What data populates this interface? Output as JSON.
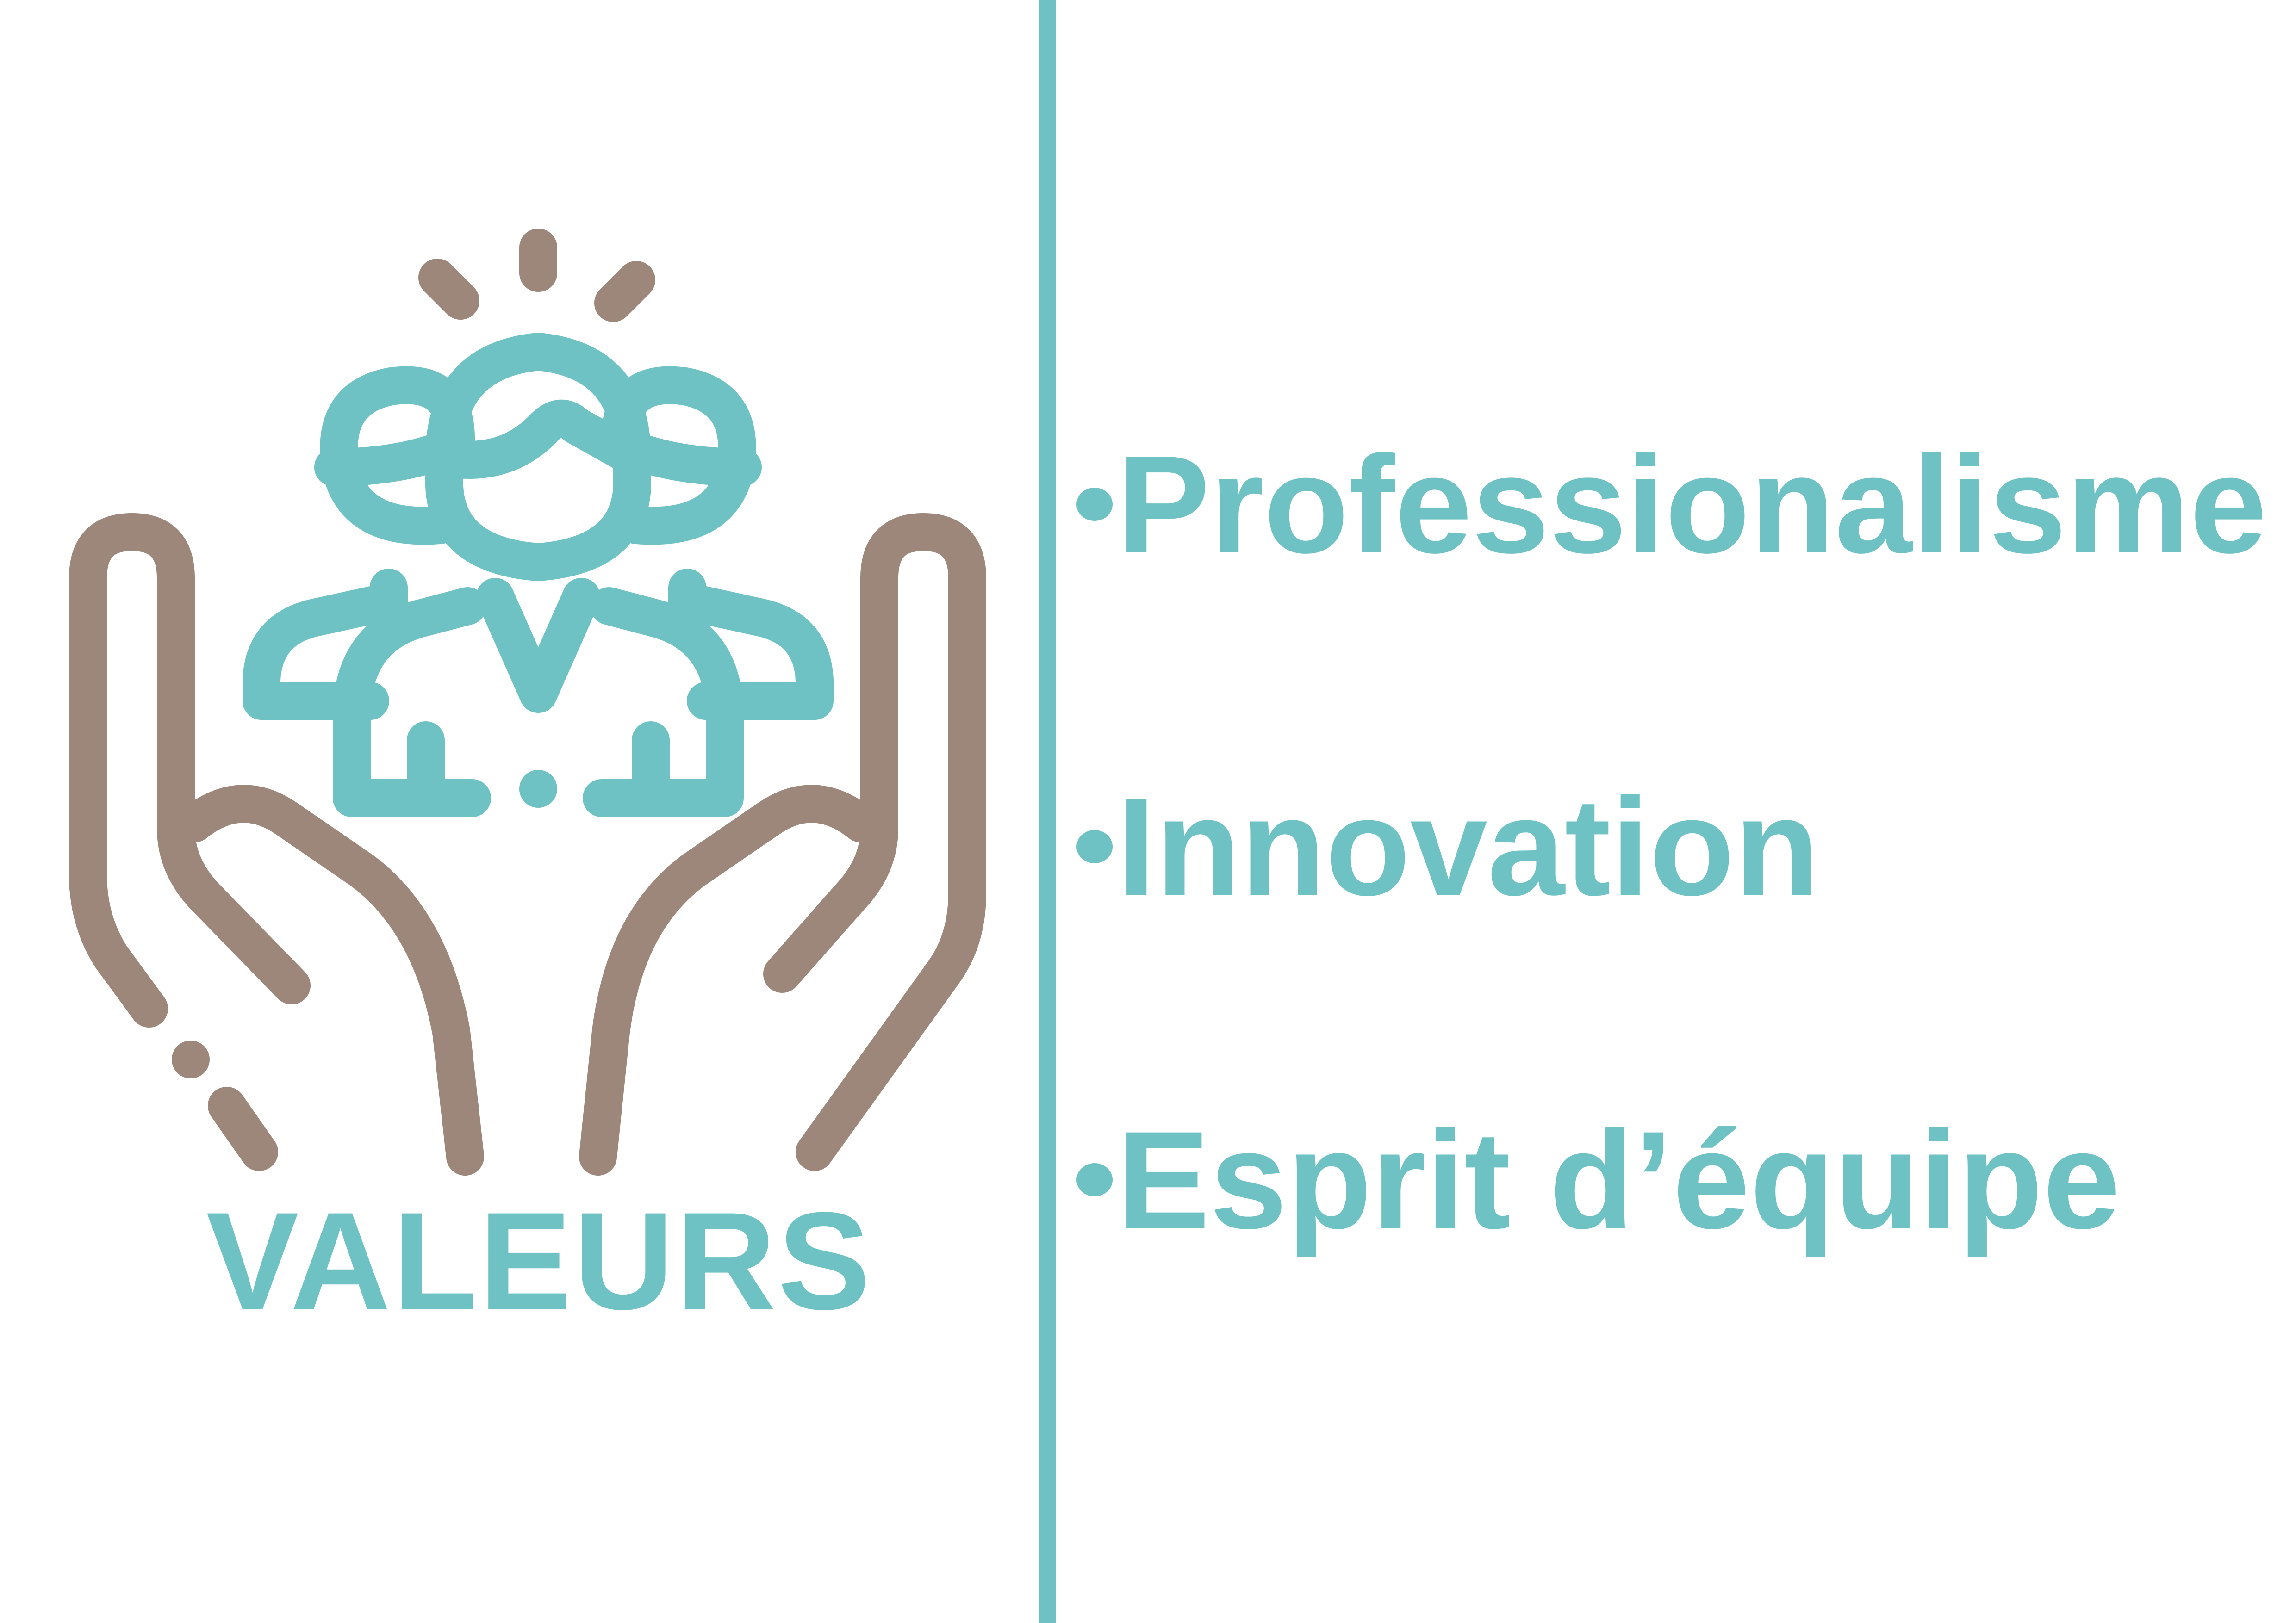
{
  "colors": {
    "accent_teal": "#6fc2c4",
    "hands_taupe": "#9c877a",
    "background": "#ffffff"
  },
  "icon": {
    "name": "team-in-hands-icon",
    "caption": "VALEURS"
  },
  "values": [
    {
      "label": "Professionalisme"
    },
    {
      "label": "Innovation"
    },
    {
      "label": "Esprit d’équipe"
    }
  ]
}
